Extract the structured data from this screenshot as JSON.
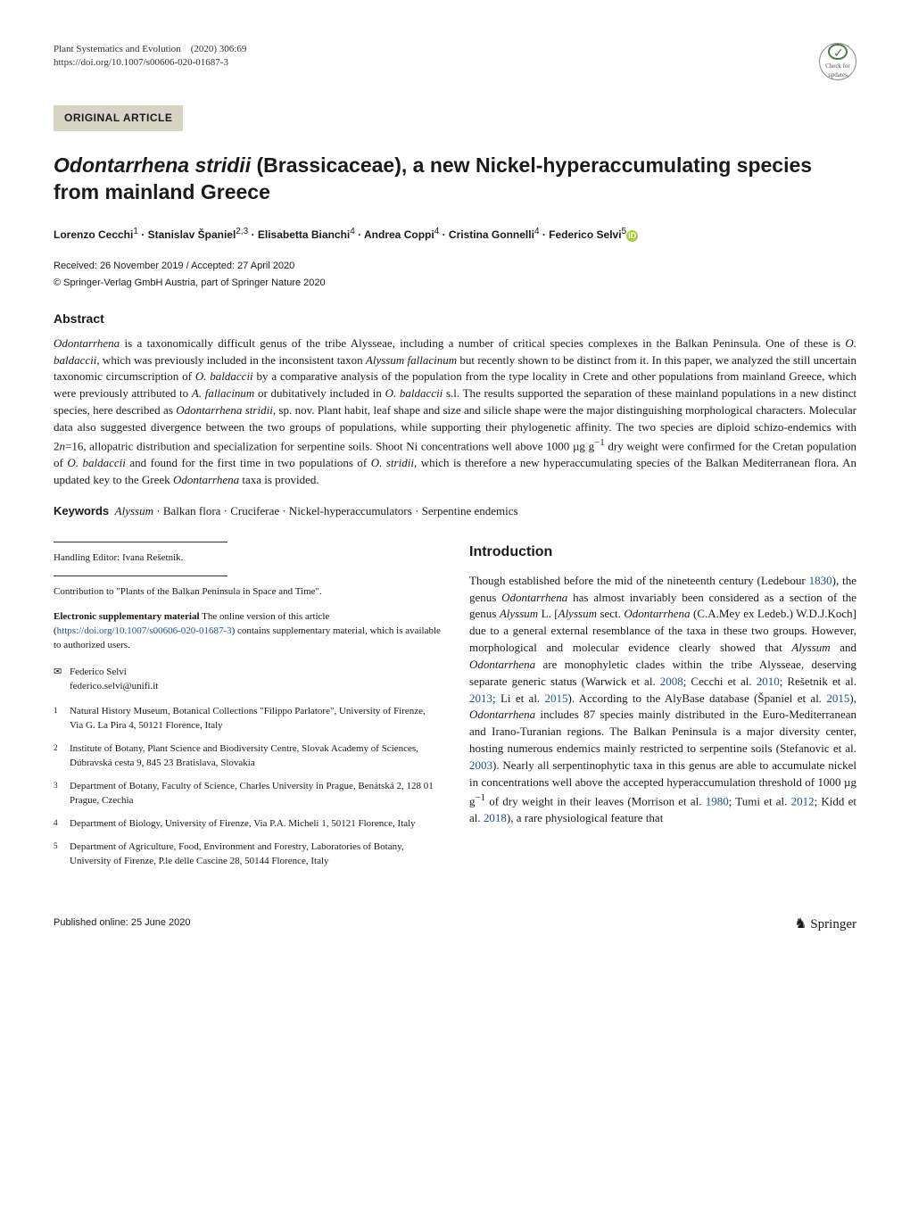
{
  "journal": {
    "name": "Plant Systematics and Evolution",
    "issue": "(2020) 306:69",
    "doi": "https://doi.org/10.1007/s00606-020-01687-3"
  },
  "crossmark": {
    "label": "Check for updates"
  },
  "article_type": "ORIGINAL ARTICLE",
  "title_html": "<span class='species'>Odontarrhena stridii</span> (Brassicaceae), a new Nickel-hyperaccumulating species from mainland Greece",
  "authors_html": "Lorenzo Cecchi<sup>1</sup> · Stanislav Španiel<sup>2,3</sup> · Elisabetta Bianchi<sup>4</sup> · Andrea Coppi<sup>4</sup> · Cristina Gonnelli<sup>4</sup> · Federico Selvi<sup>5</sup>",
  "dates": "Received: 26 November 2019 / Accepted: 27 April 2020",
  "copyright": "© Springer-Verlag GmbH Austria, part of Springer Nature 2020",
  "abstract": {
    "heading": "Abstract",
    "text_html": "<span class='italic'>Odontarrhena</span> is a taxonomically difficult genus of the tribe Alysseae, including a number of critical species complexes in the Balkan Peninsula. One of these is <span class='italic'>O. baldaccii</span>, which was previously included in the inconsistent taxon <span class='italic'>Alyssum fallacinum</span> but recently shown to be distinct from it. In this paper, we analyzed the still uncertain taxonomic circumscription of <span class='italic'>O. baldaccii</span> by a comparative analysis of the population from the type locality in Crete and other populations from mainland Greece, which were previously attributed to <span class='italic'>A. fallacinum</span> or dubitatively included in <span class='italic'>O. baldaccii</span> s.l. The results supported the separation of these mainland populations in a new distinct species, here described as <span class='italic'>Odontarrhena stridii</span>, sp. nov. Plant habit, leaf shape and size and silicle shape were the major distinguishing morphological characters. Molecular data also suggested divergence between the two groups of populations, while supporting their phylogenetic affinity. The two species are diploid schizo-endemics with 2<span class='italic'>n</span>=16, allopatric distribution and specialization for serpentine soils. Shoot Ni concentrations well above 1000 µg g<sup>−1</sup> dry weight were confirmed for the Cretan population of <span class='italic'>O. baldaccii</span> and found for the first time in two populations of <span class='italic'>O. stridii</span>, which is therefore a new hyperaccumulating species of the Balkan Mediterranean flora. An updated key to the Greek <span class='italic'>Odontarrhena</span> taxa is provided."
  },
  "keywords": {
    "label": "Keywords",
    "text_html": "<span class='italic'>Alyssum</span> · Balkan flora · Cruciferae · Nickel-hyperaccumulators · Serpentine endemics"
  },
  "handling_editor": "Handling Editor: Ivana Rešetnik.",
  "contribution": "Contribution to \"Plants of the Balkan Peninsula in Space and Time\".",
  "supp_material": {
    "label": "Electronic supplementary material",
    "text_html": "The online version of this article (<span class='link'>https://doi.org/10.1007/s00606-020-01687-3</span>) contains supplementary material, which is available to authorized users."
  },
  "correspondence": {
    "name": "Federico Selvi",
    "email": "federico.selvi@unifi.it"
  },
  "affiliations": [
    {
      "num": "1",
      "text": "Natural History Museum, Botanical Collections \"Filippo Parlatore\", University of Firenze, Via G. La Pira 4, 50121 Florence, Italy"
    },
    {
      "num": "2",
      "text": "Institute of Botany, Plant Science and Biodiversity Centre, Slovak Academy of Sciences, Dúbravská cesta 9, 845 23 Bratislava, Slovakia"
    },
    {
      "num": "3",
      "text": "Department of Botany, Faculty of Science, Charles University in Prague, Benátská 2, 128 01 Prague, Czechia"
    },
    {
      "num": "4",
      "text": "Department of Biology, University of Firenze, Via P.A. Micheli 1, 50121 Florence, Italy"
    },
    {
      "num": "5",
      "text": "Department of Agriculture, Food, Environment and Forestry, Laboratories of Botany, University of Firenze, P.le delle Cascine 28, 50144 Florence, Italy"
    }
  ],
  "introduction": {
    "heading": "Introduction",
    "text_html": "Though established before the mid of the nineteenth century (Ledebour <span class='link'>1830</span>), the genus <span class='italic'>Odontarrhena</span> has almost invariably been considered as a section of the genus <span class='italic'>Alyssum</span> L. [<span class='italic'>Alyssum</span> sect. <span class='italic'>Odontarrhena</span> (C.A.Mey ex Ledeb.) W.D.J.Koch] due to a general external resemblance of the taxa in these two groups. However, morphological and molecular evidence clearly showed that <span class='italic'>Alyssum</span> and <span class='italic'>Odontarrhena</span> are monophyletic clades within the tribe Alysseae, deserving separate generic status (Warwick et al. <span class='link'>2008</span>; Cecchi et al. <span class='link'>2010</span>; Rešetnik et al. <span class='link'>2013</span>; Li et al. <span class='link'>2015</span>). According to the AlyBase database (Španiel et al. <span class='link'>2015</span>), <span class='italic'>Odontarrhena</span> includes 87 species mainly distributed in the Euro-Mediterranean and Irano-Turanian regions. The Balkan Peninsula is a major diversity center, hosting numerous endemics mainly restricted to serpentine soils (Stefanovic et al. <span class='link'>2003</span>). Nearly all serpentinophytic taxa in this genus are able to accumulate nickel in concentrations well above the accepted hyperaccumulation threshold of 1000 µg g<sup>−1</sup> of dry weight in their leaves (Morrison et al. <span class='link'>1980</span>; Tumi et al. <span class='link'>2012</span>; Kidd et al. <span class='link'>2018</span>), a rare physiological feature that"
  },
  "footer": {
    "published": "Published online: 25 June 2020",
    "publisher": "Springer"
  },
  "colors": {
    "link": "#1a5490",
    "article_type_bg": "#d8d4c4",
    "orcid": "#a6ce39",
    "crossmark_green": "#4a7a4a"
  }
}
